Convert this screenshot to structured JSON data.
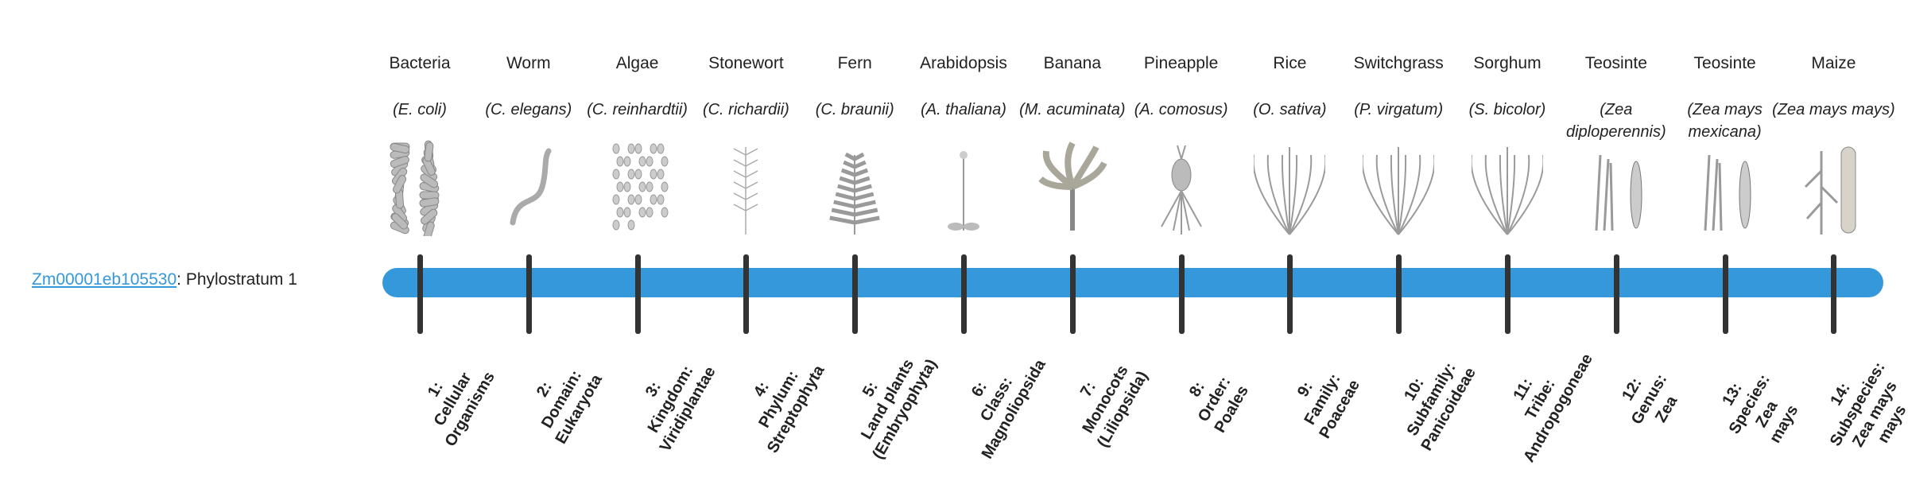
{
  "gene": {
    "id": "Zm00001eb105530",
    "suffix": ": Phylostratum 1"
  },
  "colors": {
    "bar": "#3498db",
    "tick": "#333333",
    "link": "#3498db",
    "illustration": "#9a9a9a"
  },
  "strata": [
    {
      "common": "Bacteria",
      "sci": "(E. coli)",
      "icon": "bacteria-icon",
      "rank": [
        "1:",
        "Cellular",
        "Organisms"
      ]
    },
    {
      "common": "Worm",
      "sci": "(C. elegans)",
      "icon": "worm-icon",
      "rank": [
        "2:",
        "Domain:",
        "Eukaryota"
      ]
    },
    {
      "common": "Algae",
      "sci": "(C. reinhardtii)",
      "icon": "algae-icon",
      "rank": [
        "3:",
        "Kingdom:",
        "Viridiplantae"
      ]
    },
    {
      "common": "Stonewort",
      "sci": "(C. richardii)",
      "icon": "stonewort-icon",
      "rank": [
        "4:",
        "Phylum:",
        "Streptophyta"
      ]
    },
    {
      "common": "Fern",
      "sci": "(C. braunii)",
      "icon": "fern-icon",
      "rank": [
        "5:",
        "Land plants",
        "(Embryophyta)"
      ]
    },
    {
      "common": "Arabidopsis",
      "sci": "(A. thaliana)",
      "icon": "arabidopsis-icon",
      "rank": [
        "6:",
        "Class:",
        "Magnoliopsida"
      ]
    },
    {
      "common": "Banana",
      "sci": "(M. acuminata)",
      "icon": "banana-icon",
      "rank": [
        "7:",
        "Monocots",
        "(Liliopsida)"
      ]
    },
    {
      "common": "Pineapple",
      "sci": "(A. comosus)",
      "icon": "pineapple-icon",
      "rank": [
        "8:",
        "Order:",
        "Poales"
      ]
    },
    {
      "common": "Rice",
      "sci": "(O. sativa)",
      "icon": "rice-icon",
      "rank": [
        "9:",
        "Family:",
        "Poaceae"
      ]
    },
    {
      "common": "Switchgrass",
      "sci": "(P. virgatum)",
      "icon": "switchgrass-icon",
      "rank": [
        "10:",
        "Subfamily:",
        "Panicoideae"
      ]
    },
    {
      "common": "Sorghum",
      "sci": "(S. bicolor)",
      "icon": "sorghum-icon",
      "rank": [
        "11:",
        "Tribe:",
        "Andropogoneae"
      ]
    },
    {
      "common": "Teosinte",
      "sci": "(Zea diploperennis)",
      "icon": "teosinte-icon",
      "rank": [
        "12:",
        "Genus:",
        "Zea"
      ]
    },
    {
      "common": "Teosinte",
      "sci": "(Zea mays mexicana)",
      "icon": "teosinte-icon",
      "rank": [
        "13:",
        "Species:",
        "Zea",
        "mays"
      ]
    },
    {
      "common": "Maize",
      "sci": "(Zea mays mays)",
      "icon": "maize-icon",
      "rank": [
        "14:",
        "Subspecies:",
        "Zea mays",
        "mays"
      ]
    }
  ]
}
